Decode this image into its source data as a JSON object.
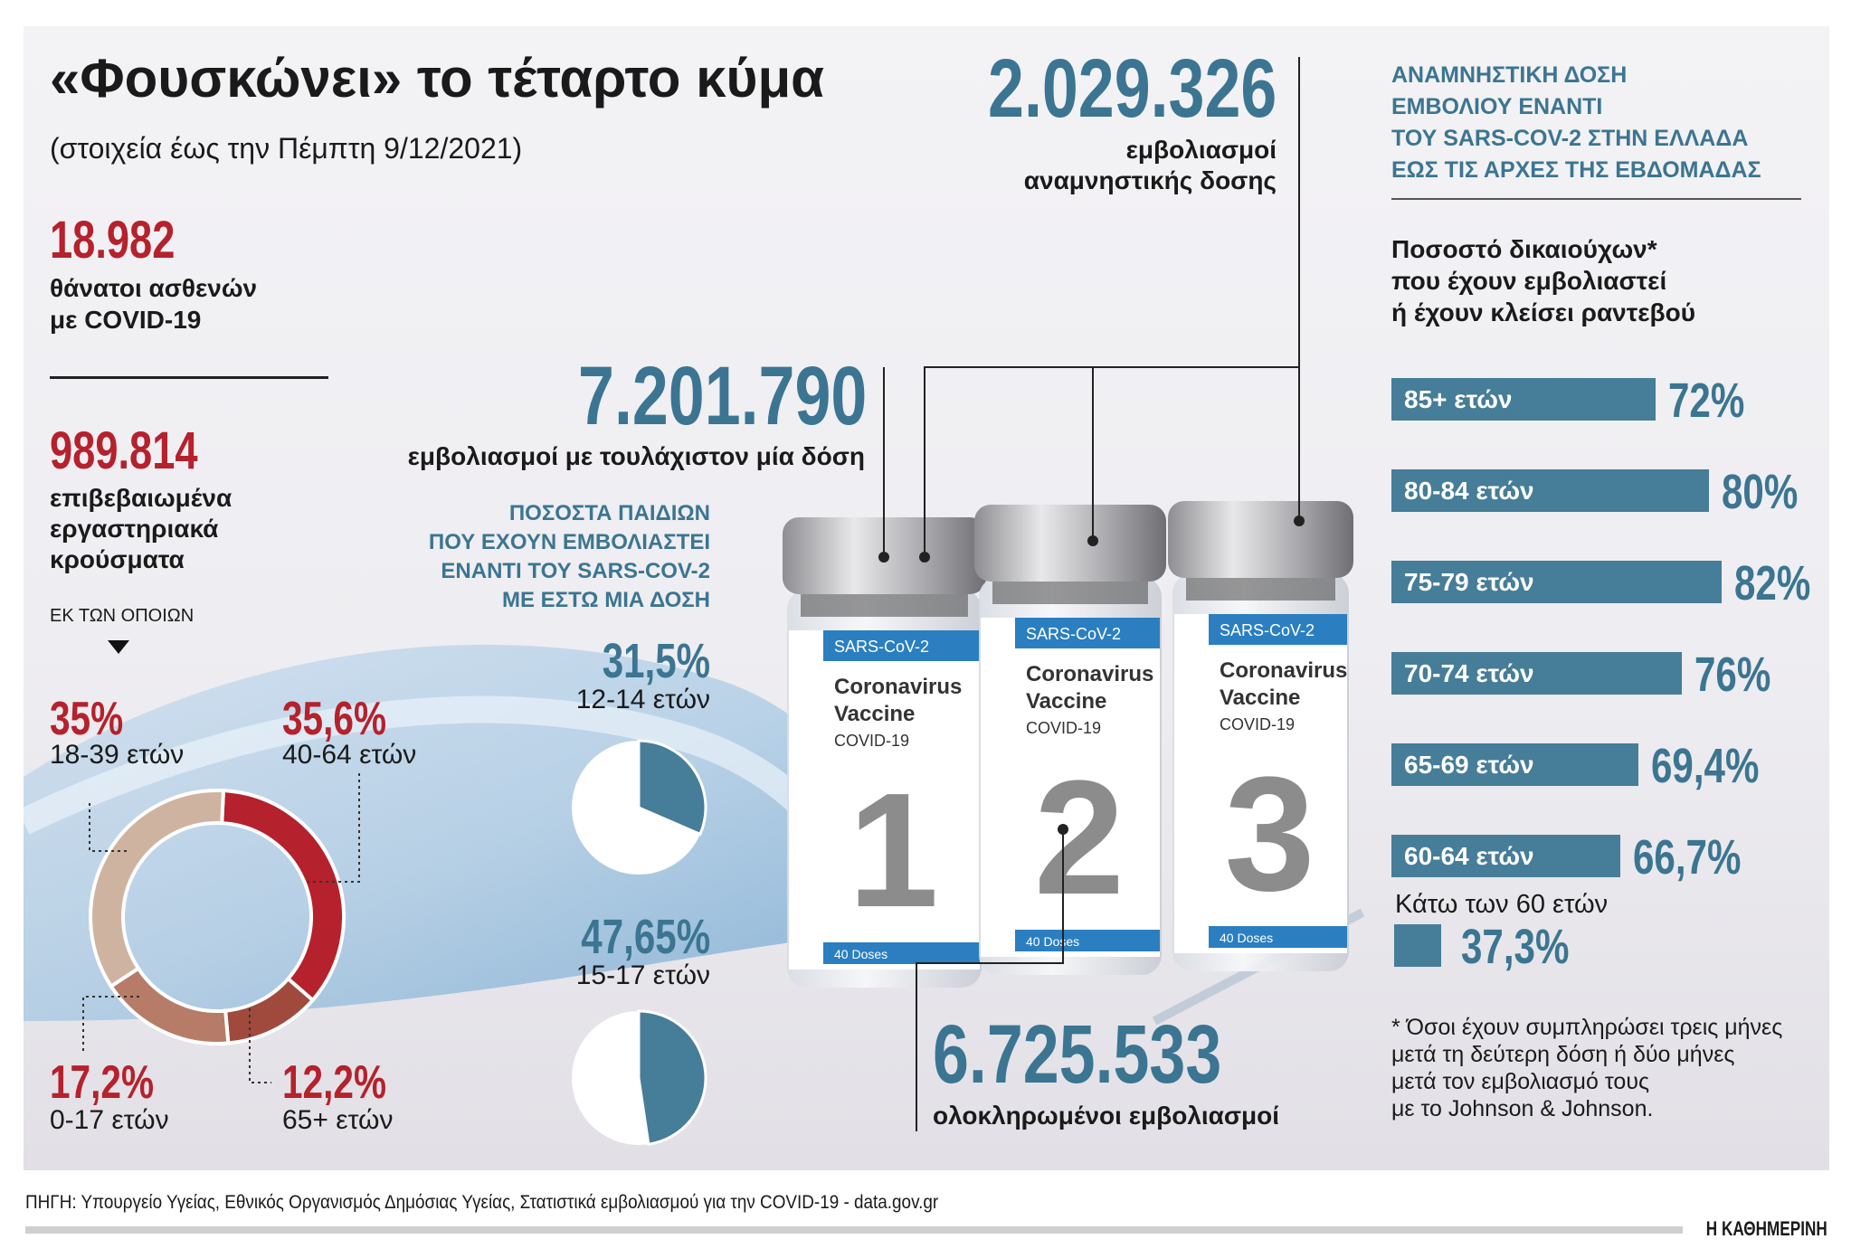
{
  "title": "«Φουσκώνει» το τέταρτο κύμα",
  "subtitle": "(στοιχεία έως την Πέμπτη 9/12/2021)",
  "deaths": {
    "value": "18.982",
    "label1": "θάνατοι ασθενών",
    "label2": "με COVID-19"
  },
  "cases": {
    "value": "989.814",
    "label1": "επιβεβαιωμένα",
    "label2": "εργαστηριακά",
    "label3": "κρούσματα",
    "of_which": "ΕΚ ΤΩΝ ΟΠΟΙΩΝ"
  },
  "colors": {
    "red": "#b5212c",
    "teal": "#3b7591",
    "bar": "#467d98",
    "beige": "#cfb3a1",
    "brown": "#b67c68",
    "darkbrown": "#a04a3e"
  },
  "chart_data": [
    {
      "type": "pie",
      "variant": "donut",
      "categories": [
        "40-64 ετών",
        "65+ ετών",
        "0-17 ετών",
        "18-39 ετών"
      ],
      "values": [
        35.6,
        12.2,
        17.2,
        35
      ],
      "labels": [
        "35,6%",
        "12,2%",
        "17,2%",
        "35%"
      ],
      "colors": [
        "#b5212c",
        "#a04a3e",
        "#b67c68",
        "#cfb3a1"
      ]
    },
    {
      "type": "pie",
      "title_lines": [
        "ΠΟΣΟΣΤΑ ΠΑΙΔΙΩΝ",
        "ΠΟΥ ΕΧΟΥΝ ΕΜΒΟΛΙΑΣΤΕΙ",
        "ΕΝΑΝΤΙ ΤΟΥ SARS-COV-2",
        "ΜΕ ΕΣΤΩ ΜΙΑ ΔΟΣΗ"
      ],
      "items": [
        {
          "category": "12-14 ετών",
          "value": 31.5,
          "label": "31,5%"
        },
        {
          "category": "15-17 ετών",
          "value": 47.65,
          "label": "47,65%"
        }
      ]
    },
    {
      "type": "bar",
      "orientation": "horizontal",
      "title_lines": [
        "Ποσοστό δικαιούχων*",
        "που έχουν εμβολιαστεί",
        "ή έχουν κλείσει ραντεβού"
      ],
      "categories": [
        "85+ ετών",
        "80-84 ετών",
        "75-79 ετών",
        "70-74 ετών",
        "65-69 ετών",
        "60-64 ετών"
      ],
      "values": [
        72,
        80,
        82,
        76,
        69.4,
        66.7
      ],
      "labels": [
        "72%",
        "80%",
        "82%",
        "76%",
        "69,4%",
        "66,7%"
      ],
      "extra": {
        "category": "Κάτω των 60 ετών",
        "value": 37.3,
        "label": "37,3%"
      }
    }
  ],
  "vaccinations": {
    "booster": {
      "value": "2.029.326",
      "label1": "εμβολιασμοί",
      "label2": "αναμνηστικής δοσης"
    },
    "first_dose": {
      "value": "7.201.790",
      "label": "εμβολιασμοί με τουλάχιστον μία δόση"
    },
    "completed": {
      "value": "6.725.533",
      "label": "ολοκληρωμένοι εμβολιασμοί"
    }
  },
  "booster_header": [
    "ΑΝΑΜΝΗΣΤΙΚΗ ΔΟΣΗ",
    "ΕΜΒΟΛΙΟΥ ΕΝΑΝΤΙ",
    "ΤΟΥ SARS-COV-2 ΣΤΗΝ ΕΛΛΑΔΑ",
    "ΕΩΣ ΤΙΣ ΑΡΧΕΣ ΤΗΣ ΕΒΔΟΜΑΔΑΣ"
  ],
  "vials": [
    {
      "number": "1",
      "brand": "SARS-CoV-2",
      "name1": "Coronavirus",
      "name2": "Vaccine",
      "name3": "COVID-19",
      "doses": "40 Doses"
    },
    {
      "number": "2",
      "brand": "SARS-CoV-2",
      "name1": "Coronavirus",
      "name2": "Vaccine",
      "name3": "COVID-19",
      "doses": "40 Doses"
    },
    {
      "number": "3",
      "brand": "SARS-CoV-2",
      "name1": "Coronavirus",
      "name2": "Vaccine",
      "name3": "COVID-19",
      "doses": "40 Doses"
    }
  ],
  "footnote": [
    "* Όσοι έχουν συμπληρώσει τρεις μήνες",
    "μετά τη δεύτερη δόση ή δύο μήνες",
    "μετά τον εμβολιασμό τους",
    "με το Johnson & Johnson."
  ],
  "source": "ΠΗΓΗ: Υπουργείο Υγείας, Εθνικός Οργανισμός Δημόσιας Υγείας, Στατιστικά εμβολιασμού για την COVID-19 - data.gov.gr",
  "publisher": "Η ΚΑΘΗΜΕΡΙΝΗ"
}
